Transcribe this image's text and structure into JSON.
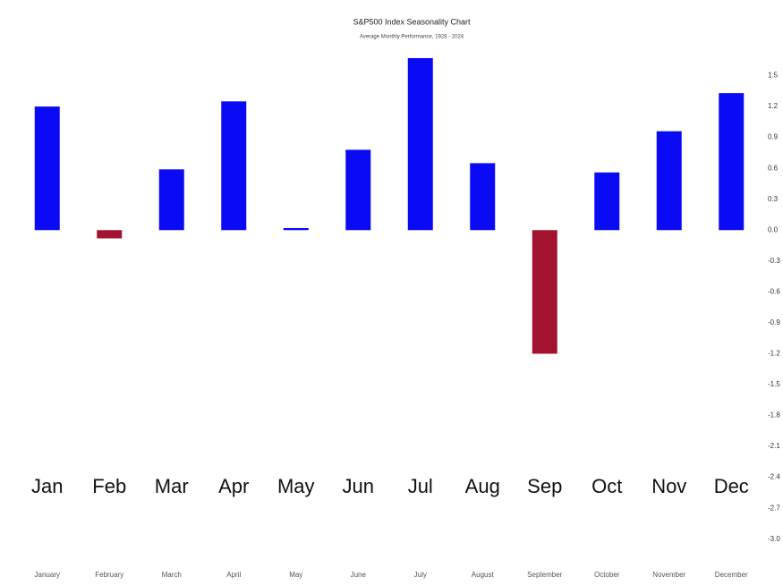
{
  "chart_data": {
    "type": "bar",
    "title": "S&P500 Index Seasonality Chart",
    "subtitle": "Average Monthly Performance, 1928 - 2024",
    "categories": [
      "January",
      "February",
      "March",
      "April",
      "May",
      "June",
      "July",
      "August",
      "September",
      "October",
      "November",
      "December"
    ],
    "overlay_labels": [
      "Jan",
      "Feb",
      "Mar",
      "Apr",
      "May",
      "Jun",
      "Jul",
      "Aug",
      "Sep",
      "Oct",
      "Nov",
      "Dec"
    ],
    "values": [
      1.2,
      -0.08,
      0.59,
      1.25,
      0.02,
      0.78,
      1.67,
      0.65,
      -1.2,
      0.56,
      0.96,
      1.33
    ],
    "color": "#0a0af5",
    "negative_color": "#a3122e",
    "ylim": [
      -3.15,
      1.8
    ],
    "yticks": [
      1.5,
      1.2,
      0.9,
      0.6,
      0.3,
      {
        "value": 0,
        "label": "0.0"
      },
      -0.3,
      -0.6,
      -0.9,
      -1.2,
      -1.5,
      -1.8,
      -2.1,
      -2.4,
      -2.7,
      {
        "value": -3,
        "label": "-3.0"
      }
    ],
    "grid": false
  }
}
